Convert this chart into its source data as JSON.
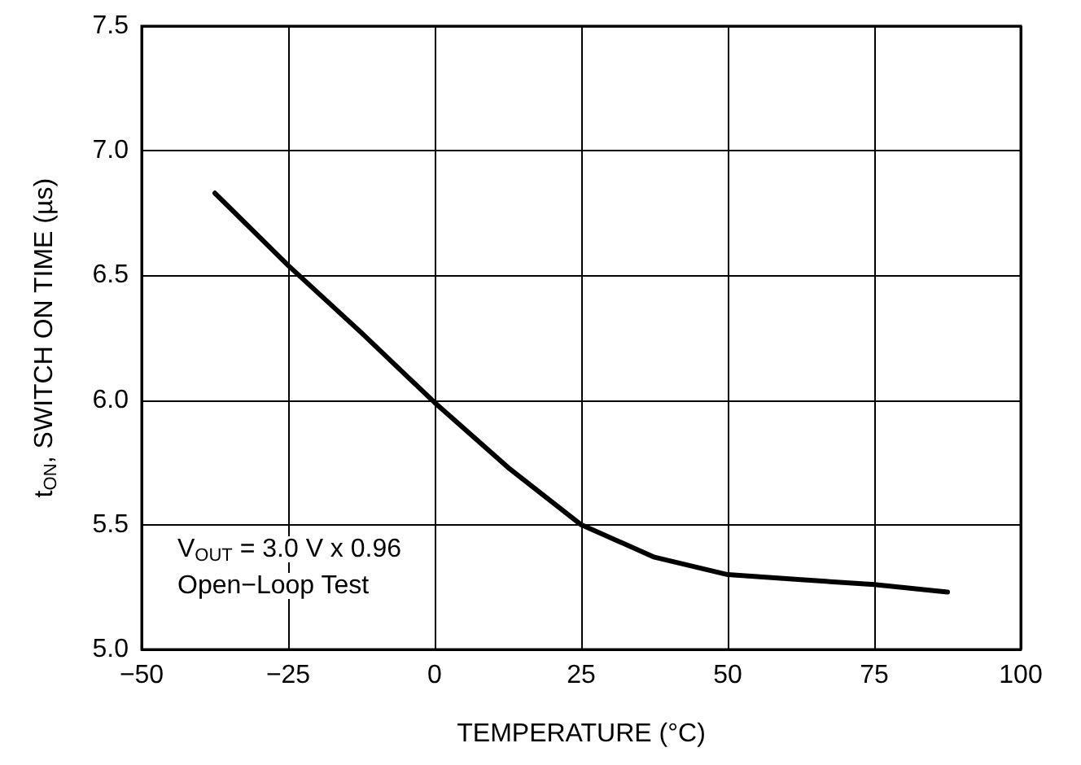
{
  "chart_data": {
    "type": "line",
    "xlabel": "TEMPERATURE (°C)",
    "ylabel": "t$_{ON}$, SWITCH ON TIME (µs)",
    "x": [
      -37.5,
      -25,
      -12.5,
      0,
      12.5,
      25,
      37.5,
      50,
      62.5,
      75,
      87.5
    ],
    "series": [
      {
        "color": "#000000",
        "values": [
          6.83,
          6.54,
          6.27,
          5.99,
          5.73,
          5.5,
          5.37,
          5.3,
          5.28,
          5.26,
          5.23
        ]
      }
    ],
    "xlim": [
      -50,
      100
    ],
    "ylim": [
      5,
      7.5
    ],
    "xticks": [
      {
        "value": -50,
        "label": "−50"
      },
      {
        "value": -25,
        "label": "−25"
      },
      0,
      25,
      50,
      75,
      100
    ],
    "yticks": [
      {
        "value": 5,
        "label": "5.0"
      },
      5.5,
      {
        "value": 6,
        "label": "6.0"
      },
      6.5,
      {
        "value": 7,
        "label": "7.0"
      },
      7.5
    ],
    "grid": true,
    "marker": "none",
    "line_style": "solid",
    "annotations": [
      "V$_{OUT}$ = 3.0 V x 0.96",
      "Open−Loop Test"
    ]
  }
}
